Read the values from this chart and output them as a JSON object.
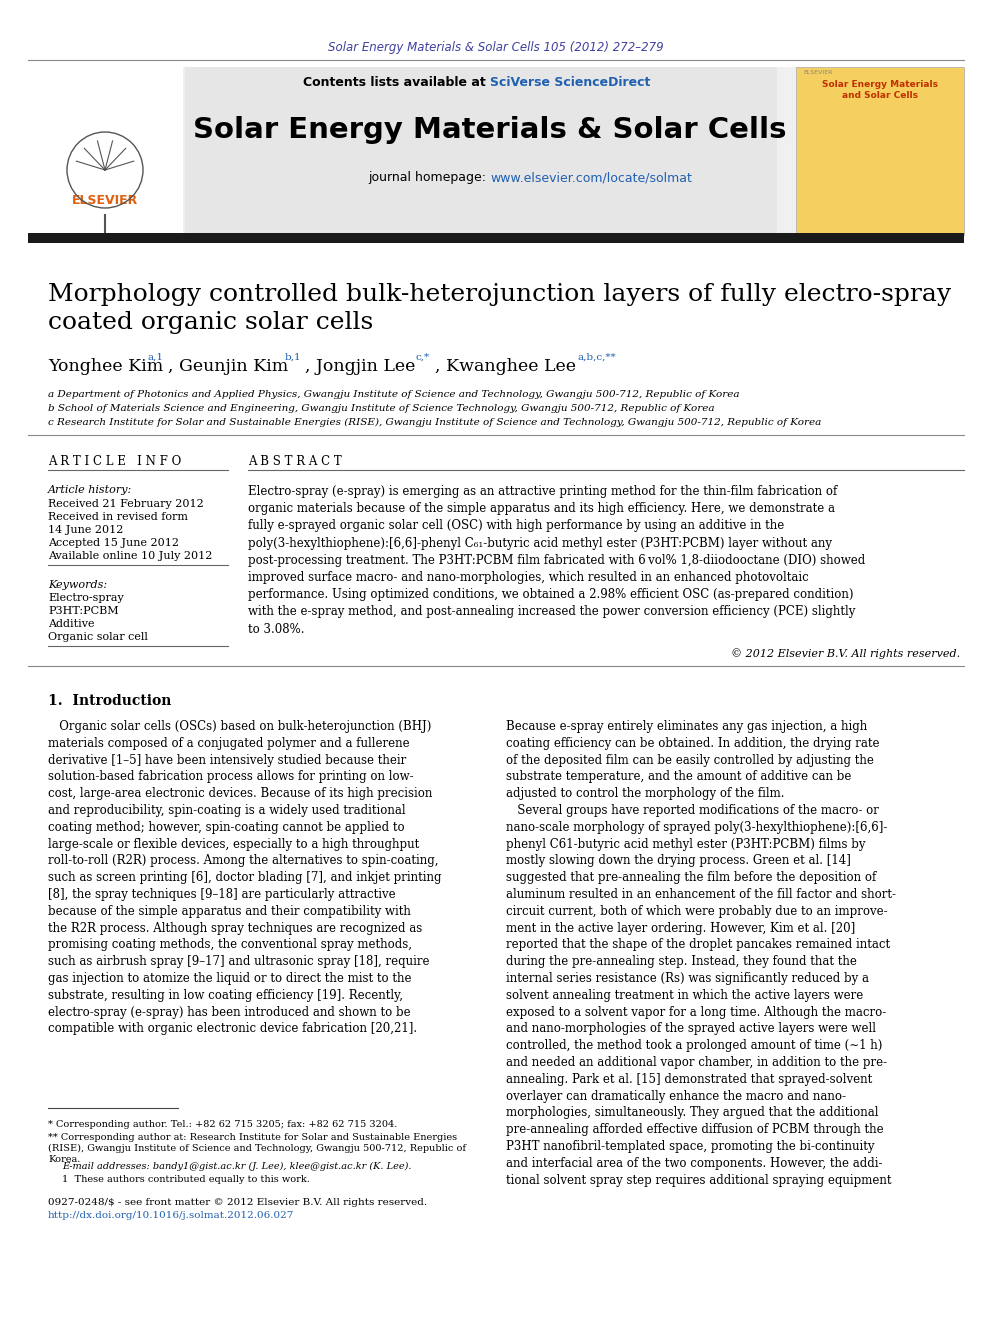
{
  "page_bg": "#ffffff",
  "header_citation": "Solar Energy Materials & Solar Cells 105 (2012) 272–279",
  "header_citation_color": "#4040a0",
  "journal_name": "Solar Energy Materials & Solar Cells",
  "contents_text": "Contents lists available at ",
  "sciverse_text": "SciVerse ScienceDirect",
  "sciverse_color": "#2060b0",
  "journal_homepage": "journal homepage: ",
  "homepage_url": "www.elsevier.com/locate/solmat",
  "homepage_url_color": "#2060b0",
  "header_bg": "#e8e8e8",
  "title": "Morphology controlled bulk-heterojunction layers of fully electro-spray\ncoated organic solar cells",
  "affil_a": "a Department of Photonics and Applied Physics, Gwangju Institute of Science and Technology, Gwangju 500-712, Republic of Korea",
  "affil_b": "b School of Materials Science and Engineering, Gwangju Institute of Science Technology, Gwangju 500-712, Republic of Korea",
  "affil_c": "c Research Institute for Solar and Sustainable Energies (RISE), Gwangju Institute of Science and Technology, Gwangju 500-712, Republic of Korea",
  "article_info_header": "A R T I C L E   I N F O",
  "abstract_header": "A B S T R A C T",
  "article_history_label": "Article history:",
  "received1": "Received 21 February 2012",
  "received2": "Received in revised form",
  "received2b": "14 June 2012",
  "accepted": "Accepted 15 June 2012",
  "available": "Available online 10 July 2012",
  "keywords_label": "Keywords:",
  "keyword1": "Electro-spray",
  "keyword2": "P3HT:PCBM",
  "keyword3": "Additive",
  "keyword4": "Organic solar cell",
  "abstract_text": "Electro-spray (e-spray) is emerging as an attractive printing method for the thin-film fabrication of\norganic materials because of the simple apparatus and its high efficiency. Here, we demonstrate a\nfully e-sprayed organic solar cell (OSC) with high performance by using an additive in the\npoly(3-hexylthiophene):[6,6]-phenyl C₆₁-butyric acid methyl ester (P3HT:PCBM) layer without any\npost-processing treatment. The P3HT:PCBM film fabricated with 6 vol% 1,8-diiodooctane (DIO) showed\nimproved surface macro- and nano-morphologies, which resulted in an enhanced photovoltaic\nperformance. Using optimized conditions, we obtained a 2.98% efficient OSC (as-prepared condition)\nwith the e-spray method, and post-annealing increased the power conversion efficiency (PCE) slightly\nto 3.08%.",
  "copyright": "© 2012 Elsevier B.V. All rights reserved.",
  "section1_title": "1.  Introduction",
  "intro_col1": "   Organic solar cells (OSCs) based on bulk-heterojunction (BHJ)\nmaterials composed of a conjugated polymer and a fullerene\nderivative [1–5] have been intensively studied because their\nsolution-based fabrication process allows for printing on low-\ncost, large-area electronic devices. Because of its high precision\nand reproducibility, spin-coating is a widely used traditional\ncoating method; however, spin-coating cannot be applied to\nlarge-scale or flexible devices, especially to a high throughput\nroll-to-roll (R2R) process. Among the alternatives to spin-coating,\nsuch as screen printing [6], doctor blading [7], and inkjet printing\n[8], the spray techniques [9–18] are particularly attractive\nbecause of the simple apparatus and their compatibility with\nthe R2R process. Although spray techniques are recognized as\npromising coating methods, the conventional spray methods,\nsuch as airbrush spray [9–17] and ultrasonic spray [18], require\ngas injection to atomize the liquid or to direct the mist to the\nsubstrate, resulting in low coating efficiency [19]. Recently,\nelectro-spray (e-spray) has been introduced and shown to be\ncompatible with organic electronic device fabrication [20,21].",
  "intro_col2": "Because e-spray entirely eliminates any gas injection, a high\ncoating efficiency can be obtained. In addition, the drying rate\nof the deposited film can be easily controlled by adjusting the\nsubstrate temperature, and the amount of additive can be\nadjusted to control the morphology of the film.\n   Several groups have reported modifications of the macro- or\nnano-scale morphology of sprayed poly(3-hexylthiophene):[6,6]-\nphenyl C61-butyric acid methyl ester (P3HT:PCBM) films by\nmostly slowing down the drying process. Green et al. [14]\nsuggested that pre-annealing the film before the deposition of\naluminum resulted in an enhancement of the fill factor and short-\ncircuit current, both of which were probably due to an improve-\nment in the active layer ordering. However, Kim et al. [20]\nreported that the shape of the droplet pancakes remained intact\nduring the pre-annealing step. Instead, they found that the\ninternal series resistance (Rs) was significantly reduced by a\nsolvent annealing treatment in which the active layers were\nexposed to a solvent vapor for a long time. Although the macro-\nand nano-morphologies of the sprayed active layers were well\ncontrolled, the method took a prolonged amount of time (∼1 h)\nand needed an additional vapor chamber, in addition to the pre-\nannealing. Park et al. [15] demonstrated that sprayed-solvent\noverlayer can dramatically enhance the macro and nano-\nmorphologies, simultaneously. They argued that the additional\npre-annealing afforded effective diffusion of PCBM through the\nP3HT nanofibril-templated space, promoting the bi-continuity\nand interfacial area of the two components. However, the addi-\ntional solvent spray step requires additional spraying equipment",
  "footnote1": "* Corresponding author. Tel.: +82 62 715 3205; fax: +82 62 715 3204.",
  "footnote2": "** Corresponding author at: Research Institute for Solar and Sustainable Energies\n(RISE), Gwangju Institute of Science and Technology, Gwangju 500-712, Republic of\nKorea.",
  "footnote3": "E-mail addresses: bandy1@gist.ac.kr (J. Lee), klee@gist.ac.kr (K. Lee).",
  "footnote4": "1  These authors contributed equally to this work.",
  "issn_line": "0927-0248/$ - see front matter © 2012 Elsevier B.V. All rights reserved.",
  "doi_line": "http://dx.doi.org/10.1016/j.solmat.2012.06.027",
  "link_color": "#2060b0",
  "dark_text": "#000000",
  "header_bar_color": "#1a1a1a"
}
